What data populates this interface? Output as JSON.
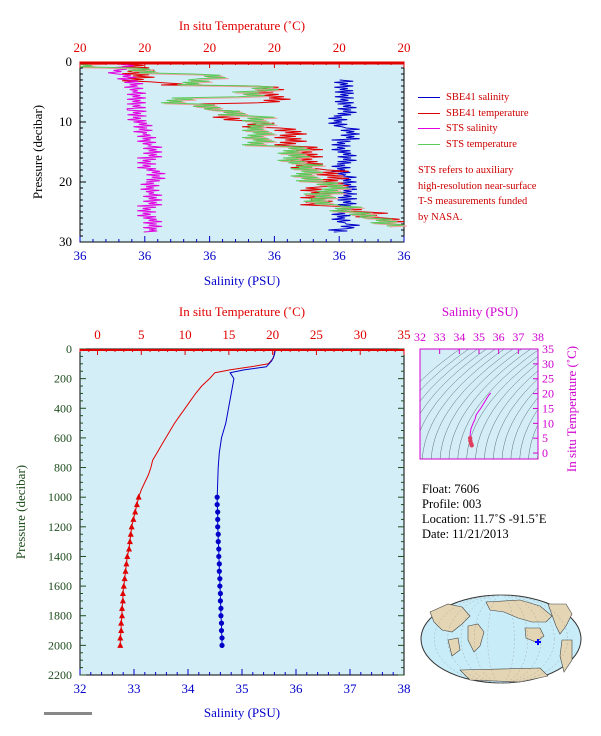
{
  "colors": {
    "panel_bg": "#d4eef8",
    "temperature": "#e00000",
    "salinity": "#0000c8",
    "sts_salinity": "#e000e0",
    "sts_temperature": "#5acb5a",
    "sts_temperature_light": "#f0a0a0",
    "axis_dark": "#1e4d1e",
    "magenta_axis": "#d000d0"
  },
  "chart_data": [
    {
      "type": "line",
      "title": "",
      "top_axis_label": "In situ Temperature (˚C)",
      "top_ticks": [
        "20",
        "20",
        "20",
        "20",
        "20",
        "20"
      ],
      "bottom_axis_label": "Salinity (PSU)",
      "bottom_ticks": [
        "36",
        "36",
        "36",
        "36",
        "36",
        "36"
      ],
      "ylabel": "Pressure (decibar)",
      "y_ticks": [
        0,
        10,
        20,
        30
      ],
      "ylim": [
        30,
        0
      ],
      "series": [
        {
          "name": "SBE41 salinity",
          "pressure": [
            3,
            5,
            7,
            9,
            11,
            13,
            15,
            17,
            19,
            21,
            23,
            25,
            27,
            28
          ],
          "position_fraction": [
            0.81,
            0.82,
            0.82,
            0.8,
            0.83,
            0.81,
            0.82,
            0.81,
            0.82,
            0.83,
            0.82,
            0.81,
            0.83,
            0.8
          ]
        },
        {
          "name": "SBE41 temperature",
          "pressure": [
            0,
            3.5,
            4,
            6,
            7,
            8,
            10,
            11,
            14,
            18,
            21,
            24,
            25,
            26,
            27
          ],
          "position_fraction": [
            0.18,
            0.3,
            0.58,
            0.6,
            0.4,
            0.46,
            0.55,
            0.65,
            0.7,
            0.78,
            0.73,
            0.82,
            0.9,
            0.97,
            1.0
          ]
        },
        {
          "name": "STS salinity",
          "pressure": [
            0,
            1,
            2,
            3,
            5,
            8,
            10,
            12,
            14,
            16,
            18,
            20,
            22,
            24,
            26,
            28
          ],
          "position_fraction": [
            0.15,
            0.12,
            0.14,
            0.17,
            0.17,
            0.18,
            0.19,
            0.21,
            0.22,
            0.21,
            0.23,
            0.22,
            0.22,
            0.21,
            0.22,
            0.23
          ]
        },
        {
          "name": "STS temperature",
          "pressure": [
            0,
            1,
            2,
            3,
            4,
            5,
            6,
            7,
            8,
            9,
            11,
            14,
            17,
            20,
            22,
            24,
            25,
            26,
            27
          ],
          "position_fraction": [
            0.02,
            0.2,
            0.4,
            0.35,
            0.58,
            0.52,
            0.3,
            0.4,
            0.46,
            0.55,
            0.55,
            0.66,
            0.7,
            0.78,
            0.74,
            0.82,
            0.88,
            0.93,
            0.98
          ]
        }
      ],
      "legend": [
        "SBE41 salinity",
        "SBE41 temperature",
        "STS salinity",
        "STS temperature"
      ],
      "legend_position": "right"
    },
    {
      "type": "line",
      "title": "",
      "top_axis_label": "In situ Temperature (˚C)",
      "top_ticks": [
        0,
        5,
        10,
        15,
        20,
        25,
        30,
        35
      ],
      "xlim_temperature": [
        -2,
        35
      ],
      "bottom_axis_label": "Salinity (PSU)",
      "bottom_ticks": [
        32,
        33,
        34,
        35,
        36,
        37,
        38
      ],
      "xlim_salinity": [
        32,
        38
      ],
      "ylabel": "Pressure (decibar)",
      "y_ticks": [
        0,
        200,
        400,
        600,
        800,
        1000,
        1200,
        1400,
        1600,
        1800,
        2000,
        2200
      ],
      "ylim": [
        2200,
        0
      ],
      "series": [
        {
          "name": "Temperature",
          "pressure": [
            0,
            20,
            60,
            100,
            120,
            140,
            160,
            200,
            250,
            300,
            350,
            400,
            450,
            500,
            550,
            600,
            650,
            700,
            750,
            800,
            850,
            900,
            950,
            1000
          ],
          "values": [
            20.3,
            20.2,
            20.1,
            19.5,
            17.5,
            15.2,
            13.4,
            12.8,
            11.9,
            11.2,
            10.6,
            10.0,
            9.4,
            8.8,
            8.3,
            7.8,
            7.3,
            6.8,
            6.3,
            6.1,
            5.8,
            5.4,
            5.0,
            4.7
          ]
        },
        {
          "name": "Temperature profile points",
          "pressure": [
            1000,
            1050,
            1100,
            1150,
            1200,
            1250,
            1300,
            1350,
            1400,
            1450,
            1500,
            1550,
            1600,
            1650,
            1700,
            1750,
            1800,
            1850,
            1900,
            1950,
            2000
          ],
          "values": [
            4.7,
            4.5,
            4.3,
            4.1,
            3.9,
            3.8,
            3.7,
            3.6,
            3.4,
            3.3,
            3.2,
            3.1,
            3.0,
            2.9,
            2.9,
            2.8,
            2.8,
            2.7,
            2.7,
            2.6,
            2.6
          ]
        },
        {
          "name": "Salinity",
          "pressure": [
            0,
            40,
            80,
            120,
            140,
            160,
            200,
            300,
            400,
            500,
            600,
            700,
            800,
            900,
            1000
          ],
          "values": [
            35.62,
            35.6,
            35.55,
            35.45,
            35.05,
            34.78,
            34.85,
            34.8,
            34.75,
            34.7,
            34.62,
            34.58,
            34.56,
            34.55,
            34.54
          ]
        },
        {
          "name": "Salinity profile points",
          "pressure": [
            1000,
            1050,
            1100,
            1150,
            1200,
            1250,
            1300,
            1350,
            1400,
            1450,
            1500,
            1550,
            1600,
            1650,
            1700,
            1750,
            1800,
            1850,
            1900,
            1950,
            2000
          ],
          "values": [
            34.54,
            34.54,
            34.55,
            34.55,
            34.55,
            34.56,
            34.56,
            34.57,
            34.57,
            34.58,
            34.58,
            34.59,
            34.59,
            34.6,
            34.6,
            34.61,
            34.61,
            34.62,
            34.62,
            34.63,
            34.63
          ]
        }
      ]
    },
    {
      "type": "scatter",
      "title": "",
      "top_axis_label": "Salinity (PSU)",
      "top_ticks": [
        32,
        33,
        34,
        35,
        36,
        37,
        38
      ],
      "xlim": [
        32,
        38
      ],
      "right_axis_label": "In situ Temperature (˚C)",
      "right_ticks": [
        0,
        5,
        10,
        15,
        20,
        25,
        30,
        35
      ],
      "ylim": [
        -2,
        35
      ],
      "series": [
        {
          "name": "T-S",
          "salinity": [
            35.6,
            35.5,
            35.1,
            34.85,
            34.8,
            34.7,
            34.6,
            34.56,
            34.55,
            34.56,
            34.6,
            34.63
          ],
          "temperature": [
            20.2,
            19.5,
            15.2,
            12.8,
            11.5,
            10.0,
            8.3,
            6.8,
            5.0,
            4.1,
            3.2,
            2.6
          ]
        }
      ]
    }
  ],
  "legend_panel": {
    "entries": [
      {
        "label": "SBE41 salinity",
        "color": "#0000c8"
      },
      {
        "label": "SBE41 temperature",
        "color": "#e00000"
      },
      {
        "label": "STS salinity",
        "color": "#e000e0"
      },
      {
        "label": "STS temperature",
        "color": "#5acb5a"
      }
    ],
    "note": [
      "STS refers to auxiliary",
      "high-resolution near-surface",
      "T-S measurements funded",
      "by NASA."
    ]
  },
  "float_info": {
    "float": "Float:  7606",
    "profile": "Profile:  003",
    "location": "Location:  11.7˚S  -91.5˚E",
    "date": "Date:  11/21/2013"
  },
  "map": {
    "marker": "float-location",
    "marker_color": "#0000ff"
  }
}
